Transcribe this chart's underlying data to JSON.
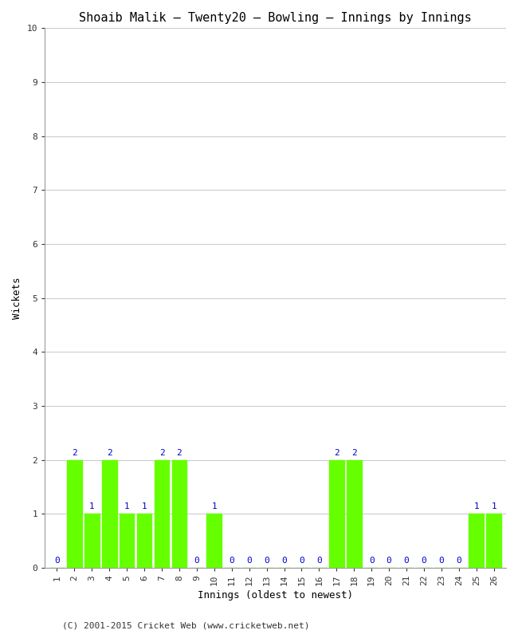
{
  "title": "Shoaib Malik – Twenty20 – Bowling – Innings by Innings",
  "xlabel": "Innings (oldest to newest)",
  "ylabel": "Wickets",
  "innings": [
    1,
    2,
    3,
    4,
    5,
    6,
    7,
    8,
    9,
    10,
    11,
    12,
    13,
    14,
    15,
    16,
    17,
    18,
    19,
    20,
    21,
    22,
    23,
    24,
    25,
    26
  ],
  "wickets": [
    0,
    2,
    1,
    2,
    1,
    1,
    2,
    2,
    0,
    1,
    0,
    0,
    0,
    0,
    0,
    0,
    2,
    2,
    0,
    0,
    0,
    0,
    0,
    0,
    1,
    1
  ],
  "bar_color": "#66ff00",
  "bar_edge_color": "#66ff00",
  "label_color": "#0000cc",
  "ylim": [
    0,
    10
  ],
  "yticks": [
    0,
    1,
    2,
    3,
    4,
    5,
    6,
    7,
    8,
    9,
    10
  ],
  "background_color": "#ffffff",
  "grid_color": "#cccccc",
  "title_fontsize": 11,
  "axis_label_fontsize": 9,
  "tick_label_fontsize": 8,
  "bar_label_fontsize": 8,
  "footer": "(C) 2001-2015 Cricket Web (www.cricketweb.net)",
  "footer_fontsize": 8
}
